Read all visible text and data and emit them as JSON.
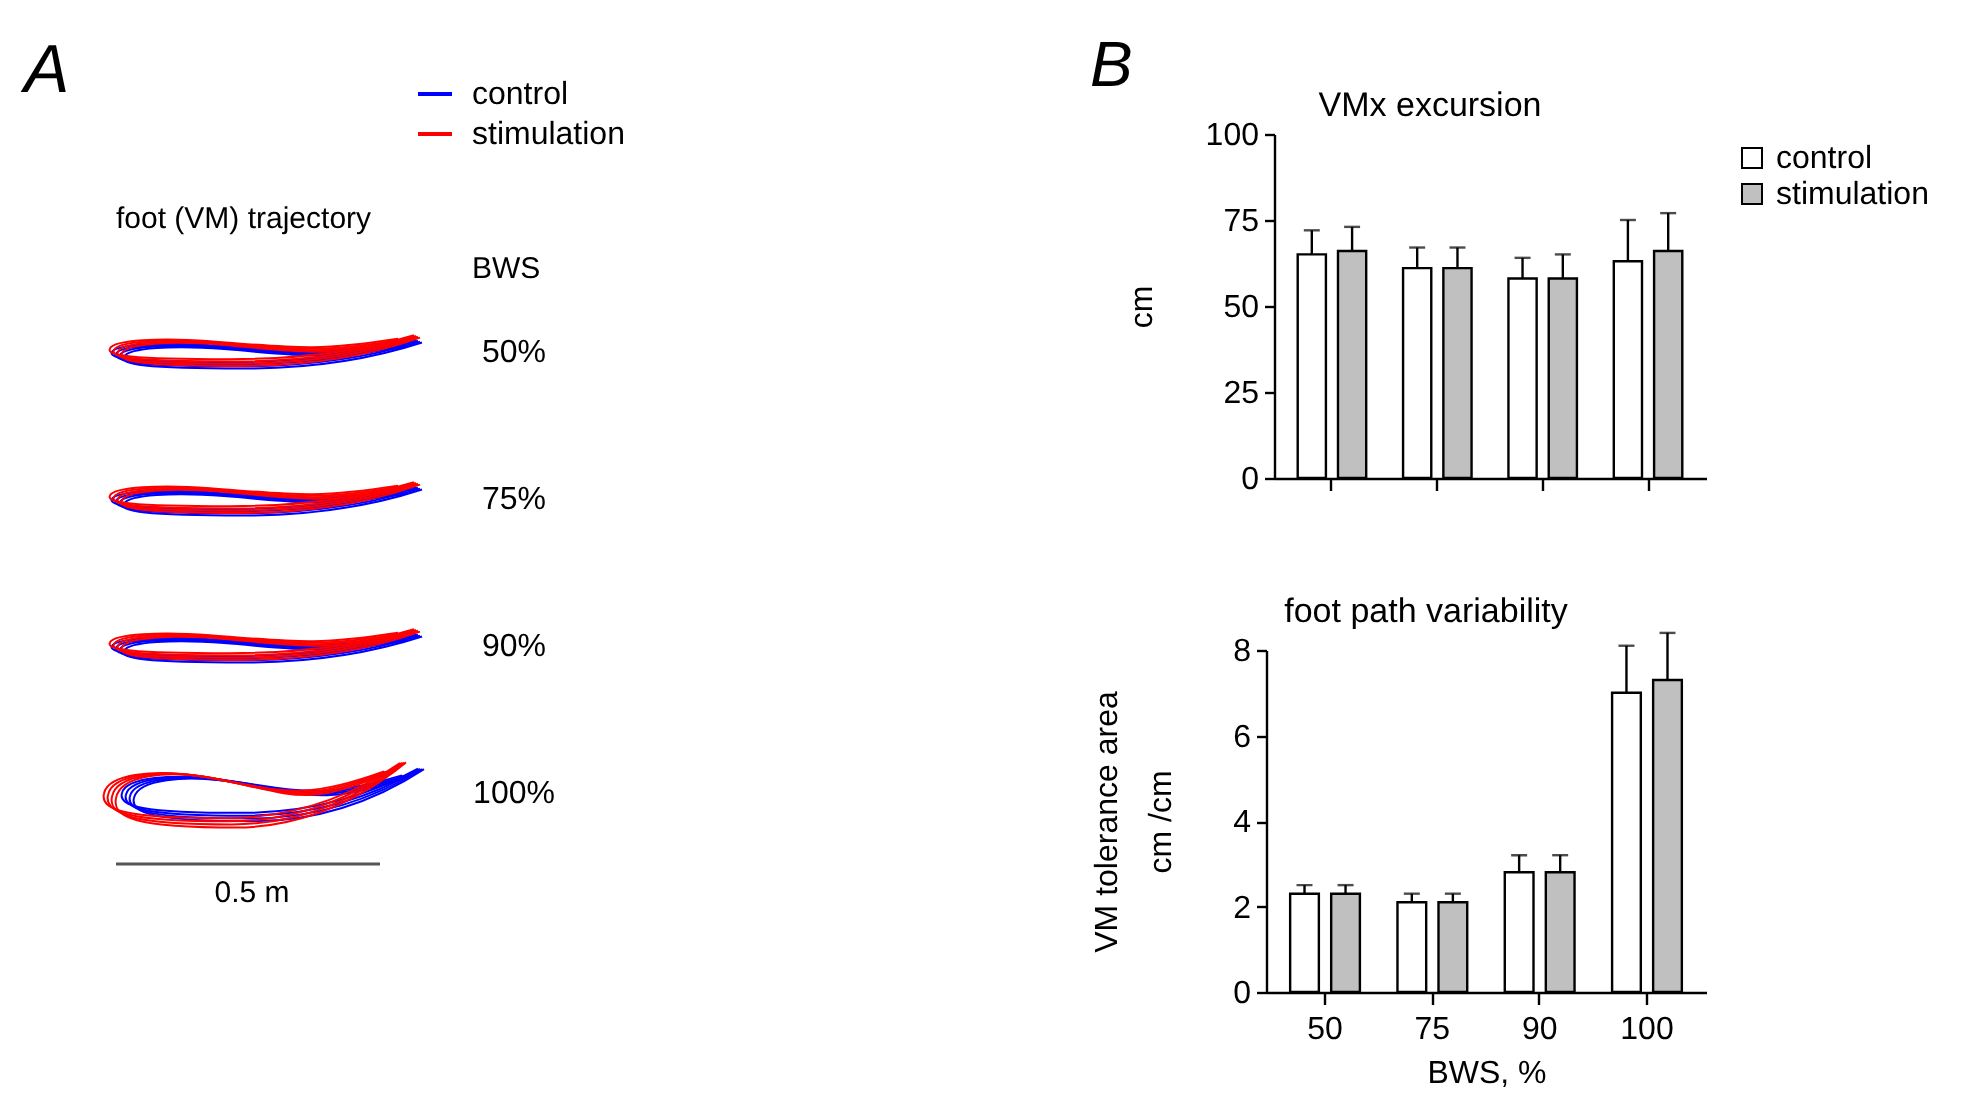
{
  "chart_data": [
    {
      "type": "other",
      "title": "foot (VM) trajectory",
      "categories": [
        "50%",
        "75%",
        "90%",
        "100%"
      ],
      "series": [
        {
          "name": "control",
          "color": "#0000ff",
          "values": [
            null,
            null,
            null,
            null
          ]
        },
        {
          "name": "stimulation",
          "color": "#ff0000",
          "values": [
            null,
            null,
            null,
            null
          ]
        }
      ],
      "legend": "top right",
      "annotations": [
        "A",
        "BWS",
        "0.5 m"
      ]
    },
    {
      "type": "bar",
      "title": "VMx excursion",
      "ylabel": "cm",
      "categories": [
        "50",
        "75",
        "90",
        "100"
      ],
      "series": [
        {
          "name": "control",
          "color": "#ffffff",
          "values": [
            65,
            61,
            58,
            63
          ],
          "errors": [
            [
              65,
              72
            ],
            [
              61,
              67
            ],
            [
              58,
              64
            ],
            [
              63,
              75
            ]
          ]
        },
        {
          "name": "stimulation",
          "color": "#c0c0c0",
          "values": [
            66,
            61,
            58,
            66
          ],
          "errors": [
            [
              66,
              73
            ],
            [
              61,
              67
            ],
            [
              58,
              65
            ],
            [
              66,
              77
            ]
          ]
        }
      ],
      "ylim": [
        0,
        100
      ],
      "yticks": [
        0,
        25,
        50,
        75,
        100
      ],
      "legend": "top right",
      "tick_labels": "y",
      "annotations": [
        "B"
      ]
    },
    {
      "type": "bar",
      "title": "foot path variability",
      "xlabel": "BWS, %",
      "ylabel": "VM tolerance area\ncm /cm",
      "categories": [
        "50",
        "75",
        "90",
        "100"
      ],
      "series": [
        {
          "color": "#ffffff",
          "values": [
            2.3,
            2.1,
            2.8,
            7.0
          ],
          "errors": [
            [
              2.3,
              2.5
            ],
            [
              2.1,
              2.3
            ],
            [
              2.8,
              3.2
            ],
            [
              7.0,
              8.1
            ]
          ]
        },
        {
          "color": "#c0c0c0",
          "values": [
            2.3,
            2.1,
            2.8,
            7.3
          ],
          "errors": [
            [
              2.3,
              2.5
            ],
            [
              2.1,
              2.3
            ],
            [
              2.8,
              3.2
            ],
            [
              7.3,
              8.4
            ]
          ]
        }
      ],
      "ylim": [
        0,
        8
      ],
      "yticks": [
        0,
        2,
        4,
        6,
        8
      ]
    }
  ]
}
